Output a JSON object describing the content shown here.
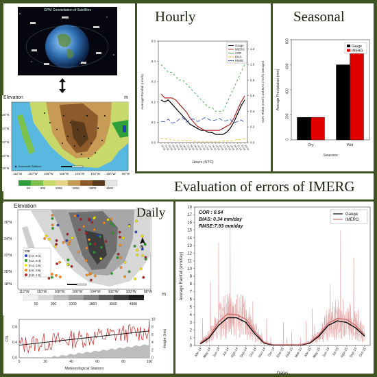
{
  "headings": {
    "hourly": "Hourly",
    "seasonal": "Seasonal",
    "evaluation": "Evaluation of errors of IMERG",
    "daily": "Daily"
  },
  "satellite_panel": {
    "caption": "GPM Constellation of Satellites"
  },
  "map_top": {
    "title": "Elevation",
    "unit": "m",
    "lon_labels": [
      "112°W",
      "110°W",
      "108°W",
      "106°W",
      "104°W",
      "102°W",
      "100°W",
      "98°W"
    ],
    "lat_labels": [
      "26°N",
      "24°N",
      "22°N",
      "20°N",
      "18°N"
    ],
    "legend_item": "Automatic Stations",
    "elevation_scale": [
      "50",
      "300",
      "1000",
      "1800",
      "3000",
      "4500"
    ],
    "colors": [
      "#2e9f3a",
      "#7cc24a",
      "#c8d96a",
      "#e8d38a",
      "#c79b55",
      "#8c5a2b",
      "#5a3a1c",
      "#e6e6e6"
    ]
  },
  "map_bottom": {
    "title": "Elevation",
    "unit": "m",
    "lon_labels": [
      "112°W",
      "110°W",
      "108°W",
      "106°W",
      "104°W",
      "102°W",
      "100°W",
      "98°W"
    ],
    "lat_labels": [
      "26°N",
      "24°N",
      "22°N",
      "20°N",
      "18°N"
    ],
    "csi_legend_title": "CSI",
    "csi_legend": [
      {
        "label": "[0.0, 0.2)",
        "color": "#1f3fbf"
      },
      {
        "label": "[0.2, 0.4)",
        "color": "#2ca02c"
      },
      {
        "label": "[0.4, 0.6)",
        "color": "#f2e600"
      },
      {
        "label": "[0.6, 0.8)",
        "color": "#ff8c1a"
      },
      {
        "label": "[0.8, 1.0]",
        "color": "#b22222"
      }
    ],
    "elevation_scale": [
      "50",
      "300",
      "1000",
      "1800",
      "3000",
      "4500"
    ],
    "north": "N"
  },
  "chart_data": [
    {
      "type": "line",
      "title": "Hourly",
      "xlabel": "Hours (UTC)",
      "ylabel": "Average Rainfall (mm/h)",
      "ylabel_right": "COR, RMSE (mm/h) and BIAS (mm/h) averaged",
      "x": [
        "00:00",
        "01:00",
        "02:00",
        "03:00",
        "04:00",
        "05:00",
        "06:00",
        "07:00",
        "08:00",
        "09:00",
        "10:00",
        "11:00",
        "12:00",
        "13:00",
        "14:00",
        "15:00",
        "16:00",
        "17:00",
        "18:00",
        "19:00",
        "20:00",
        "21:00",
        "22:00",
        "23:00"
      ],
      "ylim": [
        0,
        0.5
      ],
      "ylim_right": [
        0,
        1.3
      ],
      "yticks": [
        "0.0",
        "0.1",
        "0.2",
        "0.3",
        "0.4",
        "0.5"
      ],
      "yticks_right": [
        "0.0",
        "0.2",
        "0.4",
        "0.6",
        "0.8",
        "1.0",
        "1.2"
      ],
      "series": [
        {
          "name": "Gauge",
          "axis": "left",
          "color": "#000000",
          "dash": "",
          "values": [
            0.21,
            0.2,
            0.21,
            0.19,
            0.17,
            0.15,
            0.13,
            0.11,
            0.09,
            0.08,
            0.07,
            0.06,
            0.06,
            0.05,
            0.05,
            0.04,
            0.04,
            0.04,
            0.05,
            0.07,
            0.1,
            0.14,
            0.18,
            0.21
          ]
        },
        {
          "name": "IMERG",
          "axis": "left",
          "color": "#b22222",
          "dash": "",
          "values": [
            0.24,
            0.22,
            0.22,
            0.22,
            0.21,
            0.19,
            0.17,
            0.15,
            0.12,
            0.1,
            0.08,
            0.07,
            0.06,
            0.06,
            0.06,
            0.06,
            0.06,
            0.07,
            0.08,
            0.09,
            0.12,
            0.16,
            0.2,
            0.23
          ]
        },
        {
          "name": "COR",
          "axis": "right",
          "color": "#2ca02c",
          "dash": "3,3",
          "values": [
            1.0,
            0.95,
            0.9,
            0.9,
            0.85,
            0.8,
            0.8,
            0.75,
            0.7,
            0.65,
            0.6,
            0.55,
            0.5,
            0.45,
            0.45,
            0.4,
            0.4,
            0.4,
            0.5,
            0.6,
            0.7,
            0.8,
            0.9,
            1.0
          ]
        },
        {
          "name": "BIAS",
          "axis": "right",
          "color": "#e6b800",
          "dash": "3,3",
          "values": [
            0.05,
            0.05,
            0.04,
            0.04,
            0.03,
            0.03,
            0.02,
            0.02,
            0.02,
            0.02,
            0.01,
            0.01,
            0.01,
            0.01,
            0.01,
            0.01,
            0.01,
            0.02,
            0.02,
            0.02,
            0.03,
            0.04,
            0.04,
            0.05
          ]
        },
        {
          "name": "RMSE",
          "axis": "right",
          "color": "#1f3fbf",
          "dash": "6,3",
          "values": [
            0.27,
            0.27,
            0.3,
            0.25,
            0.26,
            0.3,
            0.32,
            0.26,
            0.3,
            0.3,
            0.27,
            0.29,
            0.32,
            0.3,
            0.28,
            0.29,
            0.31,
            0.28,
            0.28,
            0.3,
            0.25,
            0.27,
            0.29,
            0.26
          ]
        }
      ]
    },
    {
      "type": "bar",
      "title": "Seasonal",
      "xlabel": "Seasons",
      "ylabel": "Average Precipitation (mm)",
      "categories": [
        "Dry",
        "Wet"
      ],
      "ylim": [
        0,
        800
      ],
      "yticks": [
        "0",
        "200",
        "400",
        "600",
        "800"
      ],
      "series": [
        {
          "name": "Gauge",
          "color": "#000000",
          "values": [
            180,
            600
          ]
        },
        {
          "name": "IMERG",
          "color": "#e00000",
          "values": [
            180,
            690
          ]
        }
      ]
    },
    {
      "type": "line",
      "title": "Daily",
      "xlabel": "Dates",
      "ylabel": "Average Rainfall (mm/day)",
      "ylim": [
        0,
        18
      ],
      "yticks": [
        "0",
        "1",
        "2",
        "3",
        "4",
        "5",
        "6",
        "7",
        "8",
        "9",
        "10",
        "11",
        "12",
        "13",
        "14",
        "15",
        "16",
        "17",
        "18"
      ],
      "x_ticks": [
        "Abr-14",
        "May-14",
        "Jun-14",
        "Jul-14",
        "Ago-14",
        "Sep-14",
        "Oct-14",
        "Nov-14",
        "Dic-14",
        "Ene-15",
        "Feb-15",
        "Mar-15",
        "Abr-15",
        "May-15",
        "Jun-15",
        "Jul-15",
        "Ago-15",
        "Sep-15",
        "Oct-15"
      ],
      "stats": {
        "cor": "COR : 0.54",
        "bias": "BIAS: 0.34 mm/day",
        "rmse": "RMSE:7.93 mm/day"
      },
      "series": [
        {
          "name": "Gauge",
          "color": "#000000",
          "smooth": [
            0.2,
            1.0,
            2.6,
            3.6,
            3.6,
            3.0,
            1.5,
            0.3,
            0.05,
            0.05,
            0.05,
            0.05,
            0.3,
            1.2,
            2.6,
            3.2,
            3.0,
            2.3,
            1.2
          ]
        },
        {
          "name": "IMERG",
          "color": "#d06a6a",
          "smooth": [
            0.3,
            1.2,
            3.0,
            4.1,
            4.0,
            3.4,
            1.8,
            0.4,
            0.1,
            0.1,
            0.1,
            0.1,
            0.4,
            1.4,
            2.9,
            3.5,
            3.4,
            2.6,
            1.4
          ]
        }
      ]
    },
    {
      "type": "line",
      "xlabel": "Meteorological Stations",
      "ylabel": "CSI",
      "ylabel_right": "Height (km)",
      "ylim": [
        0,
        1
      ],
      "yticks": [
        "0.0",
        "0.4",
        "0.8"
      ],
      "yticks_right": [
        "0",
        "2",
        "4",
        "6",
        "8",
        "10"
      ],
      "xticks": [
        "0",
        "20",
        "40",
        "60",
        "80",
        "100"
      ],
      "series": [
        {
          "name": "CSI",
          "color": "#cc2222"
        },
        {
          "name": "Trend",
          "color": "#000000",
          "values": [
            0.33,
            0.7
          ]
        },
        {
          "name": "Height",
          "color": "#bdbdbd"
        }
      ]
    }
  ]
}
